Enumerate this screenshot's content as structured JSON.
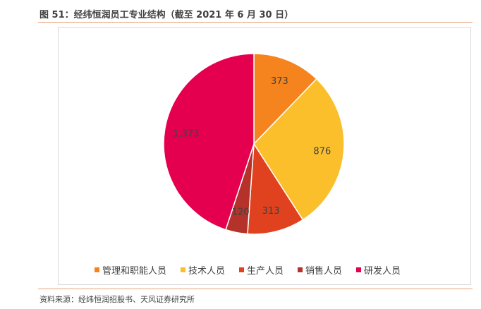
{
  "header": {
    "title": "图 51：经纬恒润员工专业结构（截至 2021 年 6 月 30 日）"
  },
  "footer": {
    "source": "资料来源：经纬恒润招股书、天风证券研究所"
  },
  "chart_data": {
    "type": "pie",
    "categories": [
      "管理和职能人员",
      "技术人员",
      "生产人员",
      "销售人员",
      "研发人员"
    ],
    "values": [
      373,
      876,
      313,
      120,
      1373
    ],
    "labels": [
      "373",
      "876",
      "313",
      "120",
      "1,373"
    ],
    "colors": [
      "#f5841f",
      "#fbbf2c",
      "#e0411e",
      "#b4322a",
      "#e5004f"
    ],
    "legend": "bottom"
  }
}
